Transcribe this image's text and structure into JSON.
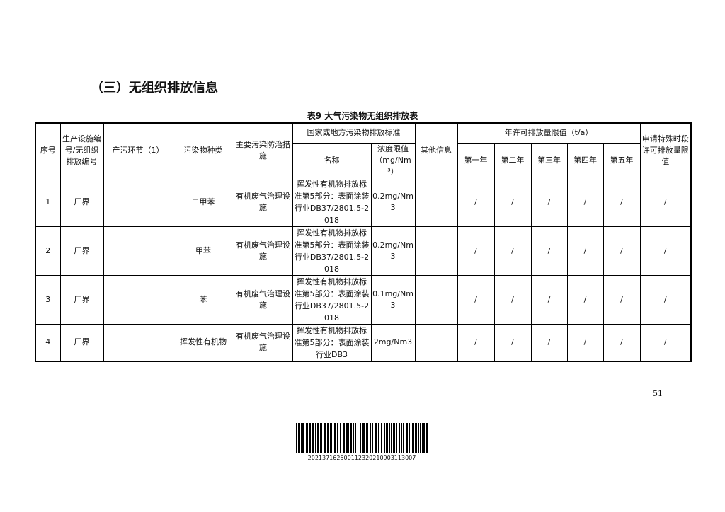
{
  "heading": "（三）无组织排放信息",
  "caption": "表9 大气污染物无组织排放表",
  "table": {
    "header": {
      "no": "序号",
      "facility": "生产设施编号/无组织排放编号",
      "stage": "产污环节（1）",
      "pollutant": "污染物种类",
      "measure": "主要污染防治措施",
      "standard_group": "国家或地方污染物排放标准",
      "standard": "名称",
      "limit": "浓度限值（mg/Nm³）",
      "other": "其他信息",
      "annual_group": "年许可排放量限值（t/a）",
      "years": [
        "第一年",
        "第二年",
        "第三年",
        "第四年",
        "第五年"
      ],
      "special": "申请特殊时段许可排放量限值"
    },
    "rows": [
      {
        "no": "1",
        "facility": "厂界",
        "pollutant": "二甲苯",
        "measure": "有机废气治理设施",
        "standard": "挥发性有机物排放标准第5部分：表面涂装行业DB37/2801.5-2018",
        "limit": "0.2mg/Nm3",
        "years": [
          "/",
          "/",
          "/",
          "/",
          "/"
        ],
        "special": "/"
      },
      {
        "no": "2",
        "facility": "厂界",
        "pollutant": "甲苯",
        "measure": "有机废气治理设施",
        "standard": "挥发性有机物排放标准第5部分：表面涂装行业DB37/2801.5-2018",
        "limit": "0.2mg/Nm3",
        "years": [
          "/",
          "/",
          "/",
          "/",
          "/"
        ],
        "special": "/"
      },
      {
        "no": "3",
        "facility": "厂界",
        "pollutant": "苯",
        "measure": "有机废气治理设施",
        "standard": "挥发性有机物排放标准第5部分：表面涂装行业DB37/2801.5-2018",
        "limit": "0.1mg/Nm3",
        "years": [
          "/",
          "/",
          "/",
          "/",
          "/"
        ],
        "special": "/"
      },
      {
        "no": "4",
        "facility": "厂界",
        "pollutant": "挥发性有机物",
        "measure": "有机废气治理设施",
        "standard": "挥发性有机物排放标准第5部分：表面涂装行业DB3",
        "limit": "2mg/Nm3",
        "years": [
          "/",
          "/",
          "/",
          "/",
          "/"
        ],
        "special": "/"
      }
    ]
  },
  "page_number": "51",
  "barcode": "202137162500112320210903113007"
}
